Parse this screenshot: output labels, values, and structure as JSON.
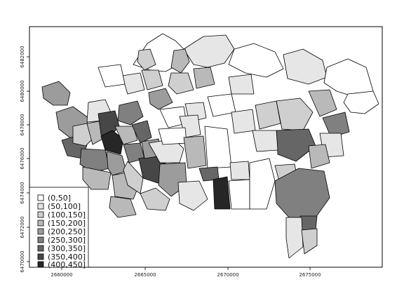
{
  "map": {
    "x_axis": {
      "ticks": [
        "2660000",
        "2665000",
        "2670000",
        "2675000"
      ]
    },
    "y_axis": {
      "ticks": [
        "6470000",
        "6472000",
        "6474000",
        "6476000",
        "6478000",
        "6480000",
        "6482000"
      ]
    },
    "legend": {
      "placement": "bottom-left",
      "entries": [
        {
          "label": "(0,50]",
          "color": "#ffffff"
        },
        {
          "label": "(50,100]",
          "color": "#e6e6e6"
        },
        {
          "label": "(100,150]",
          "color": "#cfcfcf"
        },
        {
          "label": "(150,200]",
          "color": "#b9b9b9"
        },
        {
          "label": "(200,250]",
          "color": "#9c9c9c"
        },
        {
          "label": "(250,300]",
          "color": "#808080"
        },
        {
          "label": "(300,350]",
          "color": "#666666"
        },
        {
          "label": "(350,400]",
          "color": "#474747"
        },
        {
          "label": "(400,450]",
          "color": "#262626"
        }
      ]
    },
    "fill_classes": [
      "#ffffff",
      "#e6e6e6",
      "#cfcfcf",
      "#b9b9b9",
      "#9c9c9c",
      "#808080",
      "#666666",
      "#474747",
      "#262626"
    ]
  }
}
